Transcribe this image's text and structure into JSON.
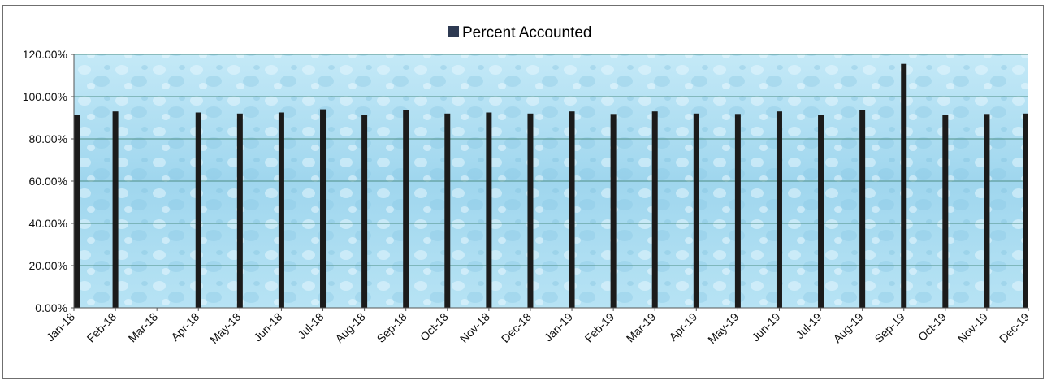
{
  "chart_data": {
    "type": "bar",
    "legend": {
      "label": "Percent Accounted",
      "placement": "top-center"
    },
    "categories": [
      "Jan-18",
      "Feb-18",
      "Mar-18",
      "Apr-18",
      "May-18",
      "Jun-18",
      "Jul-18",
      "Aug-18",
      "Sep-18",
      "Oct-18",
      "Nov-18",
      "Dec-18",
      "Jan-19",
      "Feb-19",
      "Mar-19",
      "Apr-19",
      "May-19",
      "Jun-19",
      "Jul-19",
      "Aug-19",
      "Sep-19",
      "Oct-19",
      "Nov-19",
      "Dec-19"
    ],
    "series": [
      {
        "name": "Percent Accounted",
        "values": [
          91.5,
          93.0,
          null,
          92.5,
          92.0,
          92.5,
          94.0,
          91.5,
          93.5,
          92.0,
          92.5,
          92.0,
          93.0,
          91.8,
          93.0,
          92.0,
          91.8,
          93.0,
          91.5,
          93.5,
          115.5,
          91.5,
          91.8,
          92.0
        ]
      }
    ],
    "yticks": [
      "0.00%",
      "20.00%",
      "40.00%",
      "60.00%",
      "80.00%",
      "100.00%",
      "120.00%"
    ],
    "ylim": [
      0,
      120
    ],
    "grid": true,
    "colors": {
      "bar": "#1b1b1b",
      "plot_bg": "#aee0f2",
      "legend_swatch": "#2e3a52",
      "gridline": "#4f8f86"
    }
  }
}
